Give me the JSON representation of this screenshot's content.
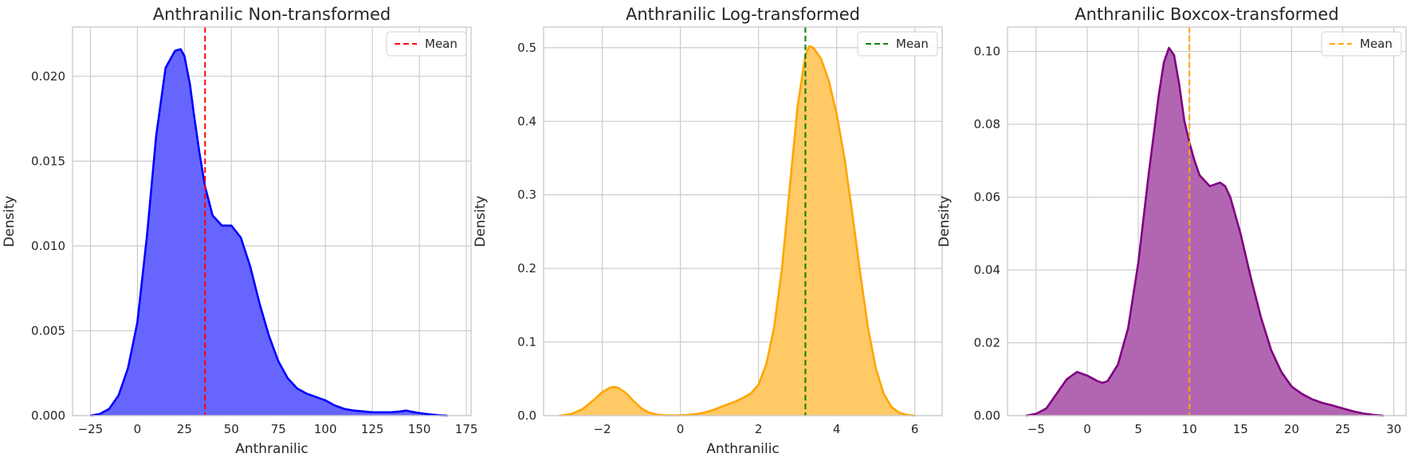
{
  "chart_data": [
    {
      "type": "area",
      "title": "Anthranilic Non-transformed",
      "xlabel": "Anthranilic",
      "ylabel": "Density",
      "xlim": [
        -34.5,
        177.5
      ],
      "ylim": [
        0,
        0.0229
      ],
      "xticks": [
        -25,
        0,
        25,
        50,
        75,
        100,
        125,
        150,
        175
      ],
      "xtick_labels": [
        "−25",
        "0",
        "25",
        "50",
        "75",
        "100",
        "125",
        "150",
        "175"
      ],
      "yticks": [
        0,
        0.005,
        0.01,
        0.015,
        0.02
      ],
      "ytick_labels": [
        "0.000",
        "0.005",
        "0.010",
        "0.015",
        "0.020"
      ],
      "grid": true,
      "legend_position": "upper right",
      "fill_color": "#6666ff",
      "line_color": "#0000ff",
      "series": [
        {
          "kind": "kde",
          "x": [
            -25,
            -20,
            -15,
            -10,
            -5,
            0,
            5,
            10,
            15,
            20,
            23,
            25,
            28,
            30,
            33,
            36,
            40,
            45,
            50,
            55,
            60,
            65,
            70,
            75,
            80,
            85,
            90,
            95,
            100,
            105,
            110,
            115,
            120,
            125,
            130,
            135,
            140,
            143,
            145,
            150,
            155,
            160,
            165
          ],
          "y": [
            0.0,
            0.0001,
            0.0004,
            0.0012,
            0.0028,
            0.0055,
            0.0105,
            0.0165,
            0.0205,
            0.0215,
            0.0216,
            0.0212,
            0.0195,
            0.0178,
            0.0155,
            0.0135,
            0.0118,
            0.0112,
            0.0112,
            0.0105,
            0.0088,
            0.0066,
            0.0047,
            0.0032,
            0.0022,
            0.0016,
            0.0013,
            0.0011,
            0.0009,
            0.0006,
            0.0004,
            0.0003,
            0.00025,
            0.0002,
            0.0002,
            0.0002,
            0.00025,
            0.0003,
            0.00025,
            0.00015,
            8e-05,
            3e-05,
            0.0
          ]
        },
        {
          "kind": "vline",
          "name": "Mean",
          "x": 36,
          "color": "#ff0000"
        }
      ]
    },
    {
      "type": "area",
      "title": "Anthranilic Log-transformed",
      "xlabel": "Anthranilic",
      "ylabel": "Density",
      "xlim": [
        -3.5,
        6.7
      ],
      "ylim": [
        0,
        0.528
      ],
      "xticks": [
        -2,
        0,
        2,
        4,
        6
      ],
      "xtick_labels": [
        "−2",
        "0",
        "2",
        "4",
        "6"
      ],
      "yticks": [
        0,
        0.1,
        0.2,
        0.3,
        0.4,
        0.5
      ],
      "ytick_labels": [
        "0.0",
        "0.1",
        "0.2",
        "0.3",
        "0.4",
        "0.5"
      ],
      "grid": true,
      "legend_position": "upper right",
      "fill_color": "#ffc966",
      "line_color": "#ffa500",
      "series": [
        {
          "kind": "kde",
          "x": [
            -3.1,
            -2.8,
            -2.5,
            -2.2,
            -2.0,
            -1.8,
            -1.7,
            -1.6,
            -1.4,
            -1.2,
            -1.0,
            -0.8,
            -0.6,
            -0.4,
            -0.2,
            0.0,
            0.2,
            0.4,
            0.6,
            0.8,
            1.0,
            1.2,
            1.4,
            1.6,
            1.8,
            2.0,
            2.2,
            2.4,
            2.6,
            2.8,
            3.0,
            3.2,
            3.3,
            3.4,
            3.6,
            3.8,
            4.0,
            4.2,
            4.4,
            4.6,
            4.8,
            5.0,
            5.2,
            5.4,
            5.6,
            5.8,
            6.0
          ],
          "y": [
            0.0,
            0.002,
            0.009,
            0.022,
            0.032,
            0.038,
            0.039,
            0.038,
            0.031,
            0.02,
            0.01,
            0.004,
            0.0015,
            0.0005,
            0.0003,
            0.0005,
            0.001,
            0.002,
            0.004,
            0.007,
            0.011,
            0.015,
            0.019,
            0.024,
            0.03,
            0.042,
            0.07,
            0.12,
            0.2,
            0.31,
            0.42,
            0.49,
            0.502,
            0.5,
            0.485,
            0.455,
            0.41,
            0.35,
            0.275,
            0.195,
            0.12,
            0.065,
            0.03,
            0.012,
            0.004,
            0.001,
            0.0
          ]
        },
        {
          "kind": "vline",
          "name": "Mean",
          "x": 3.2,
          "color": "#008000"
        }
      ]
    },
    {
      "type": "area",
      "title": "Anthranilic Boxcox-transformed",
      "xlabel": "",
      "ylabel": "Density",
      "xlim": [
        -7.8,
        31.2
      ],
      "ylim": [
        0,
        0.1067
      ],
      "xticks": [
        -5,
        0,
        5,
        10,
        15,
        20,
        25,
        30
      ],
      "xtick_labels": [
        "−5",
        "0",
        "5",
        "10",
        "15",
        "20",
        "25",
        "30"
      ],
      "yticks": [
        0,
        0.02,
        0.04,
        0.06,
        0.08,
        0.1
      ],
      "ytick_labels": [
        "0.00",
        "0.02",
        "0.04",
        "0.06",
        "0.08",
        "0.10"
      ],
      "grid": true,
      "legend_position": "upper right",
      "fill_color": "#b266b2",
      "line_color": "#800080",
      "series": [
        {
          "kind": "kde",
          "x": [
            -6,
            -5,
            -4,
            -3,
            -2,
            -1,
            0,
            1,
            1.5,
            2,
            3,
            4,
            5,
            6,
            7,
            7.5,
            8,
            8.5,
            9,
            9.5,
            10,
            10.5,
            11,
            12,
            12.5,
            13,
            13.5,
            14,
            15,
            16,
            17,
            18,
            19,
            20,
            21,
            22,
            23,
            24,
            25,
            26,
            27,
            28,
            29
          ],
          "y": [
            0.0,
            0.0005,
            0.002,
            0.006,
            0.01,
            0.012,
            0.011,
            0.0095,
            0.009,
            0.0095,
            0.014,
            0.024,
            0.042,
            0.066,
            0.088,
            0.097,
            0.101,
            0.099,
            0.091,
            0.081,
            0.075,
            0.07,
            0.066,
            0.063,
            0.0635,
            0.064,
            0.063,
            0.06,
            0.05,
            0.038,
            0.027,
            0.018,
            0.012,
            0.008,
            0.006,
            0.0045,
            0.0035,
            0.0028,
            0.002,
            0.0012,
            0.0006,
            0.0002,
            0.0
          ]
        },
        {
          "kind": "vline",
          "name": "Mean",
          "x": 10,
          "color": "#ffa500"
        }
      ]
    }
  ]
}
